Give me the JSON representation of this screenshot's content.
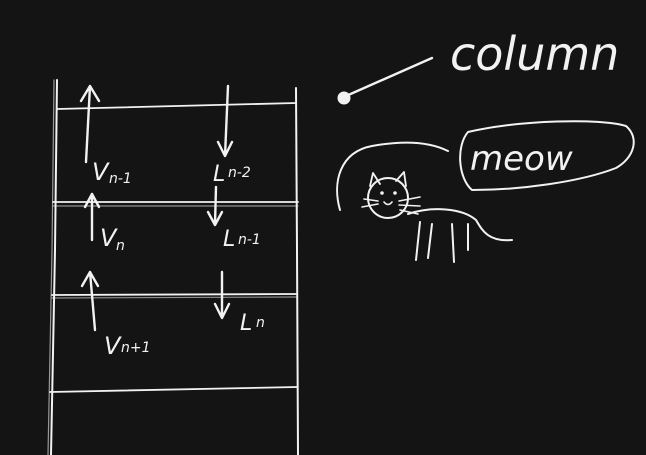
{
  "canvas": {
    "background": "#141414",
    "ink": "#f2f2f2"
  },
  "callout": {
    "label": "column"
  },
  "cat": {
    "speech": "meow"
  },
  "stages": [
    {
      "vapor_main": "V",
      "vapor_sub": "n-1",
      "liquid_main": "L",
      "liquid_sub": "n-2"
    },
    {
      "vapor_main": "V",
      "vapor_sub": "n",
      "liquid_main": "L",
      "liquid_sub": "n-1"
    },
    {
      "vapor_main": "V",
      "vapor_sub": "n+1",
      "liquid_main": "L",
      "liquid_sub": "n"
    }
  ]
}
